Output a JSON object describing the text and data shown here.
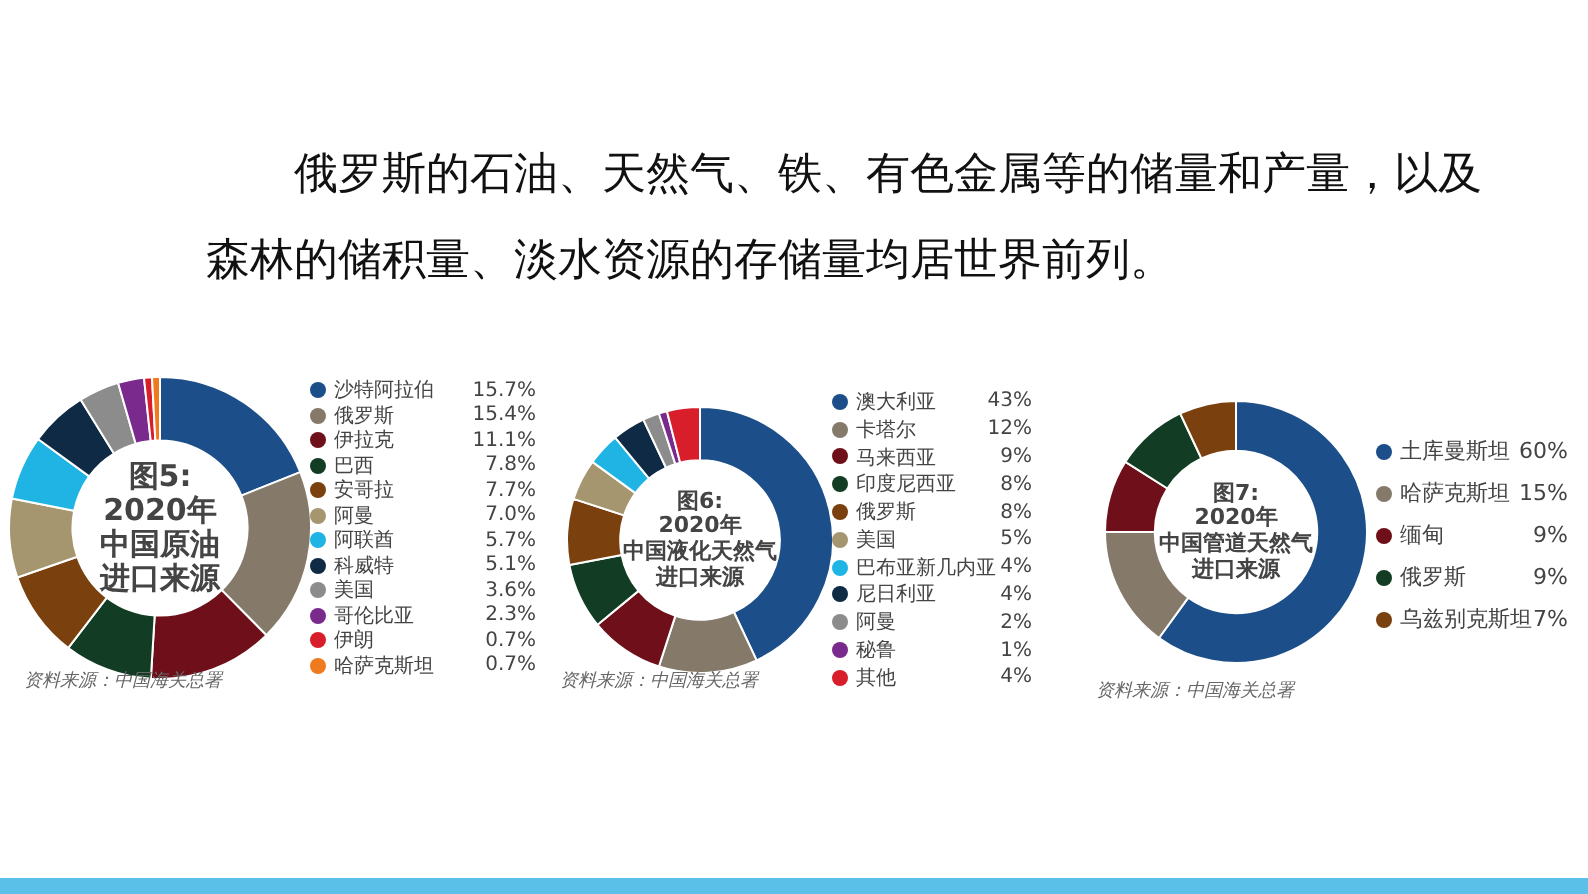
{
  "chart_data": [
    {
      "type": "donut",
      "title": "图5: 2020年中国原油进口来源",
      "annotations": [
        "俄罗斯的石油、天然气、铁、有色金属等的储量和产量，以及森林的储积量、淡水资源的存储量均居世界前列。",
        "资料来源：中国海关总署"
      ],
      "legend": "right",
      "categories": [
        "沙特阿拉伯",
        "俄罗斯",
        "伊拉克",
        "巴西",
        "安哥拉",
        "阿曼",
        "阿联酋",
        "科威特",
        "美国",
        "哥伦比亚",
        "伊朗",
        "哈萨克斯坦"
      ],
      "values": [
        15.7,
        15.4,
        11.1,
        7.8,
        7.7,
        7.0,
        5.7,
        5.1,
        3.6,
        2.3,
        0.7,
        0.7
      ],
      "value_labels": [
        "15.7%",
        "15.4%",
        "11.1%",
        "7.8%",
        "7.7%",
        "7.0%",
        "5.7%",
        "5.1%",
        "3.6%",
        "2.3%",
        "0.7%",
        "0.7%"
      ],
      "colors": [
        "#1c4f8a",
        "#857a6a",
        "#6e0f1a",
        "#123d24",
        "#7a400e",
        "#a69670",
        "#1fb4e3",
        "#0f2a45",
        "#8c8c8c",
        "#7a2a8c",
        "#d81e2a",
        "#f07a1e"
      ]
    },
    {
      "type": "donut",
      "title": "图6: 2020年中国液化天然气进口来源",
      "annotations": [
        "资料来源：中国海关总署"
      ],
      "legend": "right",
      "categories": [
        "澳大利亚",
        "卡塔尔",
        "马来西亚",
        "印度尼西亚",
        "俄罗斯",
        "美国",
        "巴布亚新几内亚",
        "尼日利亚",
        "阿曼",
        "秘鲁",
        "其他"
      ],
      "values": [
        43,
        12,
        9,
        8,
        8,
        5,
        4,
        4,
        2,
        1,
        4
      ],
      "value_labels": [
        "43%",
        "12%",
        "9%",
        "8%",
        "8%",
        "5%",
        "4%",
        "4%",
        "2%",
        "1%",
        "4%"
      ],
      "colors": [
        "#1c4f8a",
        "#857a6a",
        "#6e0f1a",
        "#123d24",
        "#7a400e",
        "#a69670",
        "#1fb4e3",
        "#0f2a45",
        "#8c8c8c",
        "#7a2a8c",
        "#d81e2a"
      ]
    },
    {
      "type": "donut",
      "title": "图7: 2020年中国管道天然气进口来源",
      "annotations": [
        "资料来源：中国海关总署"
      ],
      "legend": "right",
      "categories": [
        "土库曼斯坦",
        "哈萨克斯坦",
        "缅甸",
        "俄罗斯",
        "乌兹别克斯坦"
      ],
      "values": [
        60,
        15,
        9,
        9,
        7
      ],
      "value_labels": [
        "60%",
        "15%",
        "9%",
        "9%",
        "7%"
      ],
      "colors": [
        "#1c4f8a",
        "#857a6a",
        "#6e0f1a",
        "#123d24",
        "#7a400e"
      ]
    }
  ]
}
